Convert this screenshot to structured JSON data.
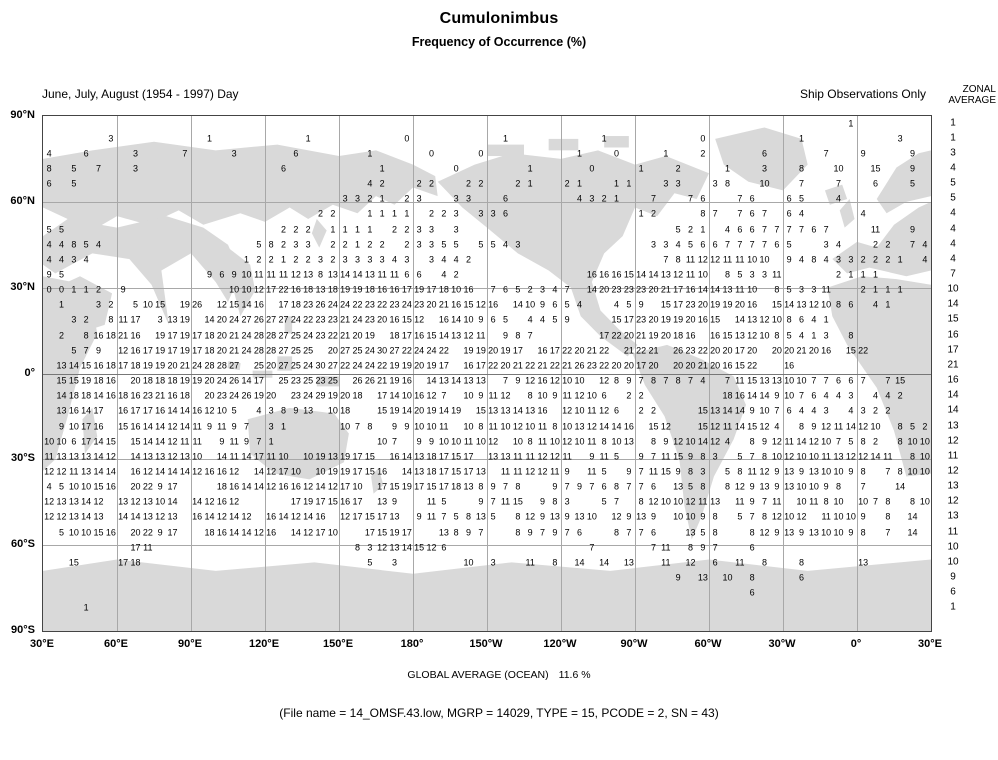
{
  "header": {
    "title": "Cumulonimbus",
    "subtitle": "Frequency of Occurrence (%)",
    "period_label": "June, July, August (1954 - 1997) Day",
    "source_label": "Ship Observations Only",
    "zonal_line1": "ZONAL",
    "zonal_line2": "AVERAGE"
  },
  "footer": {
    "global_label": "GLOBAL AVERAGE (OCEAN)",
    "global_value": "11.6 %",
    "caption": "(File name = 14_OMSF.43.low, MGRP = 14029, TYPE = 15, PCODE = 2, SN = 43)"
  },
  "chart_data": {
    "type": "heatmap",
    "title": "Cumulonimbus",
    "subtitle": "Frequency of Occurrence (%)",
    "units": "%",
    "period": "June, July, August (1954 - 1997) Day",
    "source": "Ship Observations Only",
    "global_average_ocean_pct": 11.6,
    "x_tick_labels": [
      "30°E",
      "60°E",
      "90°E",
      "120°E",
      "150°E",
      "180°",
      "150°W",
      "120°W",
      "90°W",
      "60°W",
      "30°W",
      "0°",
      "30°E"
    ],
    "y_tick_labels": [
      "90°N",
      "60°N",
      "30°N",
      "0°",
      "30°S",
      "60°S",
      "90°S"
    ],
    "grid": {
      "cols": 72,
      "rows": 34,
      "lon_start_deg": 30,
      "cell_deg": 5
    },
    "zonal_averages": [
      1,
      1,
      3,
      4,
      5,
      5,
      4,
      4,
      4,
      4,
      7,
      10,
      14,
      15,
      16,
      17,
      21,
      16,
      14,
      14,
      13,
      12,
      11,
      12,
      13,
      12,
      13,
      11,
      10,
      10,
      9,
      6,
      1
    ],
    "cells": [
      [
        [
          65,
          "1"
        ]
      ],
      [
        [
          5,
          "3"
        ],
        [
          13,
          "1"
        ],
        [
          21,
          "1"
        ],
        [
          29,
          "0"
        ],
        [
          37,
          "1"
        ],
        [
          45,
          "1"
        ],
        [
          53,
          "0"
        ],
        [
          61,
          "1"
        ],
        [
          69,
          "3"
        ]
      ],
      [
        [
          0,
          "4"
        ],
        [
          3,
          "6"
        ],
        [
          7,
          "3"
        ],
        [
          11,
          "7"
        ],
        [
          15,
          "3"
        ],
        [
          20,
          "6"
        ],
        [
          26,
          "1"
        ],
        [
          31,
          "0"
        ],
        [
          35,
          "0"
        ],
        [
          43,
          "1"
        ],
        [
          46,
          "0"
        ],
        [
          50,
          "1"
        ],
        [
          53,
          "2"
        ],
        [
          58,
          "6"
        ],
        [
          63,
          "7"
        ],
        [
          66,
          "9"
        ],
        [
          70,
          "9"
        ]
      ],
      [
        [
          0,
          "8"
        ],
        [
          2,
          "5"
        ],
        [
          4,
          "7"
        ],
        [
          7,
          "3"
        ],
        [
          19,
          "6"
        ],
        [
          27,
          "1"
        ],
        [
          33,
          "0"
        ],
        [
          39,
          "1"
        ],
        [
          44,
          "0"
        ],
        [
          48,
          "1"
        ],
        [
          51,
          "2"
        ],
        [
          55,
          "1"
        ],
        [
          58,
          "3"
        ],
        [
          61,
          "8"
        ],
        [
          64,
          "10"
        ],
        [
          67,
          "15"
        ],
        [
          70,
          "9"
        ]
      ],
      [
        [
          0,
          "6"
        ],
        [
          2,
          "5"
        ],
        [
          26,
          "4 2"
        ],
        [
          30,
          "2 2"
        ],
        [
          34,
          "2 2"
        ],
        [
          38,
          "2 1"
        ],
        [
          42,
          "2 1"
        ],
        [
          46,
          "1 1"
        ],
        [
          50,
          "3 3"
        ],
        [
          54,
          "3 8"
        ],
        [
          58,
          "10"
        ],
        [
          61,
          "7"
        ],
        [
          64,
          "7"
        ],
        [
          67,
          "6"
        ],
        [
          70,
          "5"
        ]
      ],
      [
        [
          24,
          "3 3 2 1"
        ],
        [
          29,
          "2 3"
        ],
        [
          33,
          "3 3"
        ],
        [
          37,
          "6"
        ],
        [
          43,
          "4 3 2 1"
        ],
        [
          49,
          "7"
        ],
        [
          52,
          "7 6"
        ],
        [
          56,
          "7 6"
        ],
        [
          60,
          "6 5"
        ],
        [
          64,
          "4"
        ]
      ],
      [
        [
          22,
          "2 2"
        ],
        [
          26,
          "1 1 1 1"
        ],
        [
          31,
          "2 2 3"
        ],
        [
          35,
          "3 3 6"
        ],
        [
          48,
          "1 2"
        ],
        [
          53,
          "8 7"
        ],
        [
          56,
          "7 6 7"
        ],
        [
          60,
          "6 4"
        ],
        [
          66,
          "4"
        ]
      ],
      [
        [
          0,
          "5 5"
        ],
        [
          19,
          "2 2 2"
        ],
        [
          23,
          "1 1 1 1"
        ],
        [
          28,
          "2 2 3 3"
        ],
        [
          33,
          "3"
        ],
        [
          51,
          "5 2 1"
        ],
        [
          55,
          "4 6 6 7 7 7 7 6 7"
        ],
        [
          67,
          "11"
        ],
        [
          70,
          "9"
        ]
      ],
      [
        [
          0,
          "4 4 8 5 4"
        ],
        [
          17,
          "5 8 2 3 3"
        ],
        [
          23,
          "2 2 1 2 2"
        ],
        [
          29,
          "2 3 3 5 5"
        ],
        [
          35,
          "5 5 4 3"
        ],
        [
          49,
          "3 3 4 5 6 6 7 7 7 7 6 5"
        ],
        [
          63,
          "3 4"
        ],
        [
          67,
          "2 2"
        ],
        [
          70,
          "7 4"
        ]
      ],
      [
        [
          0,
          "4 4 3 4"
        ],
        [
          16,
          "1 2 2 1 2 2 3 2 3 3 3 3 4 3"
        ],
        [
          31,
          "3 4 4 2"
        ],
        [
          50,
          "7 8 11 12 12 11 11 10 10"
        ],
        [
          60,
          "9 4 8 4 3 3 2 2 2 1"
        ],
        [
          71,
          "4"
        ]
      ],
      [
        [
          0,
          "9 5"
        ],
        [
          13,
          "9 6 9 10 11 11 11 12 13 8 13 14 14 13 11 11 6 6"
        ],
        [
          32,
          "4 2"
        ],
        [
          44,
          "16 16 16 15 14 14 13 12 11 10"
        ],
        [
          55,
          "8 5 3 3 11"
        ],
        [
          64,
          "2 1 1 1"
        ]
      ],
      [
        [
          0,
          "0 0 1 1 2"
        ],
        [
          6,
          "9"
        ],
        [
          15,
          "10 10 12 17 22 16 18 13 18 19 19 18 16 16 17 19 17 18 10 16"
        ],
        [
          36,
          "7 6 5 2 3 4 7"
        ],
        [
          44,
          "14 20 23 23 23 20 21 17 16 14 14 13 11 10"
        ],
        [
          59,
          "8 5 3 3 11"
        ],
        [
          66,
          "2 1 1 1"
        ]
      ],
      [
        [
          1,
          "1"
        ],
        [
          4,
          "3 2"
        ],
        [
          7,
          "5 10 15"
        ],
        [
          11,
          "19 26"
        ],
        [
          14,
          "12 15 14 16"
        ],
        [
          19,
          "17 18 23 26 24 24 22 23 22 23 24 23 20 21 16 15 12 16"
        ],
        [
          38,
          "14 10 9 6 5 4"
        ],
        [
          46,
          "4 5 9"
        ],
        [
          50,
          "15 17 23 20 19 19 20 16"
        ],
        [
          59,
          "15 14 13 12 10 8 6"
        ],
        [
          67,
          "4 1"
        ]
      ],
      [
        [
          2,
          "3 2"
        ],
        [
          5,
          "8 11 17"
        ],
        [
          9,
          "3 13 19"
        ],
        [
          13,
          "14 20 24 27 26 27 27 24 22 23 23 21 24 23 20 16 15 12"
        ],
        [
          32,
          "16 14 10 9 6 5"
        ],
        [
          39,
          "4 4 5 9"
        ],
        [
          46,
          "15 17 23 20 19 19 20 16 15"
        ],
        [
          56,
          "14 13 12 10 8 6 4 1"
        ]
      ],
      [
        [
          1,
          "2"
        ],
        [
          3,
          "8 16 18 21 16"
        ],
        [
          9,
          "19 17 19 17 18 20 21 24 28 28 27 25 24 23 22 21 20 19"
        ],
        [
          28,
          "18 17 16 15 14 13 12 11"
        ],
        [
          37,
          "9 8 7"
        ],
        [
          45,
          "17 22 20 21 19 20 18 16"
        ],
        [
          54,
          "16 15 13 12 10 8 5 4 1 3"
        ],
        [
          65,
          "8"
        ]
      ],
      [
        [
          2,
          "5 7 9"
        ],
        [
          6,
          "12 16 17 19 17 19 17 18 20 21 24 28 28 27 25 25"
        ],
        [
          23,
          "20 27 25 24 30 27 22 24 24 22"
        ],
        [
          34,
          "19 19 20 19 17"
        ],
        [
          40,
          "16 17 22 20 21 22"
        ],
        [
          47,
          "21 22 21"
        ],
        [
          51,
          "26 23 22 20 20 17 20"
        ],
        [
          59,
          "20 20 21 20 16"
        ],
        [
          65,
          "15 22"
        ]
      ],
      [
        [
          1,
          "13 14 15 16 18 17 18 19 19 20 21 24 28 28 27"
        ],
        [
          17,
          "25 20 27 25 24 30 27 22 24 24 22 19 19 20 19 17"
        ],
        [
          34,
          "16 17 22 20 21 22 21 22 21 26 23 22 20 20 17 20"
        ],
        [
          51,
          "20 20 21 20 16 15 22"
        ],
        [
          60,
          "16"
        ]
      ],
      [
        [
          1,
          "15 15 19 18 16"
        ],
        [
          7,
          "20 18 18 18 19 19 20 24 26 14 17"
        ],
        [
          19,
          "25 23 25 23 25"
        ],
        [
          25,
          "26 26 21 19 16"
        ],
        [
          31,
          "14 13 14 13 13"
        ],
        [
          37,
          "7 9 12 16 12 10 10"
        ],
        [
          45,
          "12 8 9 7 8 7 8 7 4"
        ],
        [
          55,
          "7 11 15 13 13 10 10 7 7 6 6 7"
        ],
        [
          68,
          "7 15"
        ]
      ],
      [
        [
          1,
          "14 18 18 14 16 18 16 23 21 16 18"
        ],
        [
          13,
          "20 23 24 26 19 20"
        ],
        [
          20,
          "23 24 29 19 20 18"
        ],
        [
          27,
          "17 14 10 16 12 7"
        ],
        [
          34,
          "10 9 11 12"
        ],
        [
          39,
          "8 10 9 11 12 10 6"
        ],
        [
          47,
          "2 2"
        ],
        [
          55,
          "18 16 14 14 9 10 7 6 4 4 3"
        ],
        [
          67,
          "4 4 2"
        ]
      ],
      [
        [
          1,
          "13 16 14 17"
        ],
        [
          6,
          "16 17 17 16 14 14 16 12 10 5"
        ],
        [
          17,
          "4 3 8 9 13"
        ],
        [
          23,
          "10 18"
        ],
        [
          27,
          "15 19 14 20 19 14 19"
        ],
        [
          35,
          "15 13 13 14 13 16"
        ],
        [
          42,
          "12 10 11 12 6"
        ],
        [
          48,
          "2 2"
        ],
        [
          53,
          "15 13 14 14 9 10 7 6 4 4 3"
        ],
        [
          65,
          "4 3 2 2"
        ]
      ],
      [
        [
          1,
          "9 10 17 16"
        ],
        [
          6,
          "15 16 14 14 12 14 11 9 11 9 7"
        ],
        [
          18,
          "3 1"
        ],
        [
          24,
          "10 7 8"
        ],
        [
          28,
          "9 9 10 10 11"
        ],
        [
          34,
          "10 8 11 10 12 10 11 8 10 13 12 14 14 16"
        ],
        [
          49,
          "15 12"
        ],
        [
          53,
          "15 12 11 14 15 12 4"
        ],
        [
          61,
          "8 9 12 11 14 12 10"
        ],
        [
          69,
          "8 5 2"
        ]
      ],
      [
        [
          0,
          "10 10 6 17 14 15"
        ],
        [
          7,
          "15 14 14 12 11 11"
        ],
        [
          14,
          "9 11 9 7 1"
        ],
        [
          27,
          "10 7"
        ],
        [
          30,
          "9 9 10 10 11 10 12"
        ],
        [
          38,
          "10 8 11 10 12 10 11 8 10 13"
        ],
        [
          49,
          "8 9 12 10 14 12 4"
        ],
        [
          57,
          "8 9 12 11 14 12 10 7 5 8 2"
        ],
        [
          69,
          "8 10 10"
        ]
      ],
      [
        [
          0,
          "11 13 13 13 14 12"
        ],
        [
          7,
          "14 13 13 12 13 10"
        ],
        [
          14,
          "14 11 14 17 11 10"
        ],
        [
          21,
          "10 19 13 19 17 15"
        ],
        [
          28,
          "16 14 13 18 17 15 17"
        ],
        [
          36,
          "13 13 11 11 12 12 11"
        ],
        [
          44,
          "9 11 5"
        ],
        [
          48,
          "9 7 11 15 9 8 3"
        ],
        [
          56,
          "5 7 8 10 12 10 10 11 13 12 12 14 11"
        ],
        [
          70,
          "8 10"
        ]
      ],
      [
        [
          0,
          "12 12 11 13 14 14"
        ],
        [
          7,
          "16 12 14 14 14 12 16 16 12"
        ],
        [
          17,
          "14 12 17 10"
        ],
        [
          22,
          "10 19 19 17 15 16"
        ],
        [
          29,
          "14 13 18 17 15 17 13"
        ],
        [
          37,
          "11 11 12 12 11 9"
        ],
        [
          44,
          "11 5"
        ],
        [
          47,
          "9 7 11 15 9 8 3"
        ],
        [
          55,
          "5 8 11 12 9 13 9 13 10 10 9 8"
        ],
        [
          68,
          "7 8 10 10"
        ]
      ],
      [
        [
          0,
          "4 5 10 10 15 16"
        ],
        [
          7,
          "20 22 9 17"
        ],
        [
          14,
          "18 16 14 14 12 16 16 12 14 12 17 10"
        ],
        [
          27,
          "17 15 19 17 15 17 18 13 8 9 7 8"
        ],
        [
          41,
          "9 7 9 7 6 8 7 7 6"
        ],
        [
          51,
          "13 5 8"
        ],
        [
          55,
          "8 12 9 13 9 13 10 10 9 8"
        ],
        [
          66,
          "7"
        ],
        [
          69,
          "14"
        ]
      ],
      [
        [
          0,
          "12 13 13 14 12"
        ],
        [
          6,
          "13 12 13 10 14"
        ],
        [
          12,
          "14 12 16 12"
        ],
        [
          20,
          "17 19 17 15 16 17"
        ],
        [
          27,
          "13 9"
        ],
        [
          31,
          "11 5"
        ],
        [
          35,
          "9 7 11 15"
        ],
        [
          40,
          "9 8 3"
        ],
        [
          45,
          "5 7"
        ],
        [
          48,
          "8 12 10 10 12 11 13"
        ],
        [
          56,
          "11 9 7 11"
        ],
        [
          61,
          "10 11 8 10"
        ],
        [
          66,
          "10 7 8"
        ],
        [
          70,
          "8 10"
        ]
      ],
      [
        [
          0,
          "12 12 13 14 13"
        ],
        [
          6,
          "14 14 13 12 13"
        ],
        [
          12,
          "16 14 12 14 12"
        ],
        [
          18,
          "16 14 12 14 16"
        ],
        [
          24,
          "12 17 15 17 13"
        ],
        [
          30,
          "9 11 7 5 8 13 5"
        ],
        [
          38,
          "8 12 9 13 9 13 10"
        ],
        [
          46,
          "12 9 13 9"
        ],
        [
          51,
          "10 10 9 8"
        ],
        [
          56,
          "5 7"
        ],
        [
          58,
          "8 12 10 12"
        ],
        [
          63,
          "11 10 10 9"
        ],
        [
          68,
          "8"
        ],
        [
          70,
          "14"
        ]
      ],
      [
        [
          1,
          "5 10 10 15 16"
        ],
        [
          7,
          "20 22 9 17"
        ],
        [
          13,
          "18 16 14 14 12 16"
        ],
        [
          20,
          "14 12 17 10"
        ],
        [
          26,
          "17 15 19 17"
        ],
        [
          32,
          "13 8 9 7"
        ],
        [
          38,
          "8 9 7 9 7 6"
        ],
        [
          46,
          "8 7 7 6"
        ],
        [
          52,
          "13 5 8"
        ],
        [
          57,
          "8 12 9 13 9 13 10 10 9 8"
        ],
        [
          68,
          "7"
        ],
        [
          70,
          "14"
        ]
      ],
      [
        [
          7,
          "17 11"
        ],
        [
          25,
          "8 3 12 13 14 15"
        ],
        [
          31,
          "12 6"
        ],
        [
          44,
          "7"
        ],
        [
          49,
          "7 11"
        ],
        [
          52,
          "8 9 7"
        ],
        [
          57,
          "6"
        ]
      ],
      [
        [
          2,
          "15"
        ],
        [
          6,
          "17 18"
        ],
        [
          26,
          "5"
        ],
        [
          28,
          "3"
        ],
        [
          34,
          "10"
        ],
        [
          36,
          "3"
        ],
        [
          39,
          "11"
        ],
        [
          41,
          "8"
        ],
        [
          43,
          "14"
        ],
        [
          45,
          "14"
        ],
        [
          47,
          "13"
        ],
        [
          50,
          "11"
        ],
        [
          52,
          "12"
        ],
        [
          54,
          "6"
        ],
        [
          56,
          "11"
        ],
        [
          58,
          "8"
        ],
        [
          61,
          "8"
        ],
        [
          66,
          "13"
        ]
      ],
      [
        [
          51,
          "9"
        ],
        [
          53,
          "13"
        ],
        [
          55,
          "10"
        ],
        [
          57,
          "8"
        ],
        [
          61,
          "6"
        ]
      ],
      [
        [
          57,
          "6"
        ]
      ],
      [
        [
          3,
          "1"
        ]
      ],
      []
    ]
  }
}
